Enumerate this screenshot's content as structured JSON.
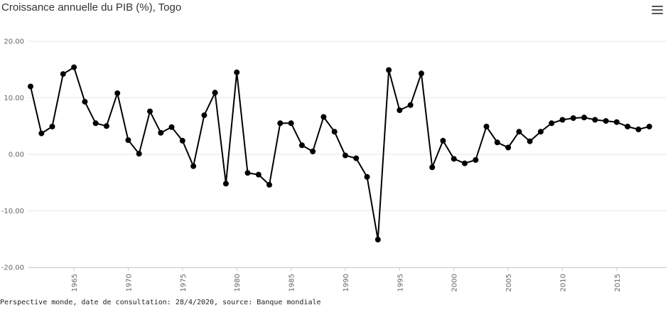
{
  "header": {
    "title": "Croissance annuelle du PIB (%), Togo",
    "menu_icon": "hamburger-icon"
  },
  "footer": {
    "source": "Perspective monde, date de consultation: 28/4/2020, source: Banque mondiale"
  },
  "chart_data": {
    "type": "line",
    "title": "Croissance annuelle du PIB (%), Togo",
    "xlabel": "",
    "ylabel": "",
    "ylim": [
      -20,
      20
    ],
    "xlim": [
      1960,
      2018
    ],
    "y_ticks": [
      "20.00",
      "10.00",
      "0.00",
      "-10.00",
      "-20.00"
    ],
    "x_ticks": [
      "1965",
      "1970",
      "1975",
      "1980",
      "1985",
      "1990",
      "1995",
      "2000",
      "2005",
      "2010",
      "2015"
    ],
    "grid": "horizontal",
    "legend": "none",
    "color": "#000000",
    "series": [
      {
        "x": [
          1961,
          1962,
          1963,
          1964,
          1965,
          1966,
          1967,
          1968,
          1969,
          1970,
          1971,
          1972,
          1973,
          1974,
          1975,
          1976,
          1977,
          1978,
          1979,
          1980,
          1981,
          1982,
          1983,
          1984,
          1985,
          1986,
          1987,
          1988,
          1989,
          1990,
          1991,
          1992,
          1993,
          1994,
          1995,
          1996,
          1997,
          1998,
          1999,
          2000,
          2001,
          2002,
          2003,
          2004,
          2005,
          2006,
          2007,
          2008,
          2009,
          2010,
          2011,
          2012,
          2013,
          2014,
          2015,
          2016,
          2017,
          2018
        ],
        "values": [
          12.0,
          3.7,
          4.9,
          14.2,
          15.4,
          9.3,
          5.5,
          5.0,
          10.8,
          2.5,
          0.1,
          7.6,
          3.8,
          4.8,
          2.4,
          -2.1,
          6.9,
          10.9,
          -5.2,
          14.5,
          -3.3,
          -3.6,
          -5.4,
          5.5,
          5.5,
          1.6,
          0.5,
          6.6,
          4.0,
          -0.2,
          -0.7,
          -4.0,
          -15.1,
          14.9,
          7.8,
          8.7,
          14.3,
          -2.3,
          2.4,
          -0.8,
          -1.6,
          -1.0,
          4.9,
          2.1,
          1.2,
          4.0,
          2.3,
          4.0,
          5.5,
          6.1,
          6.4,
          6.5,
          6.1,
          5.9,
          5.7,
          4.9,
          4.4,
          4.9
        ]
      }
    ]
  }
}
